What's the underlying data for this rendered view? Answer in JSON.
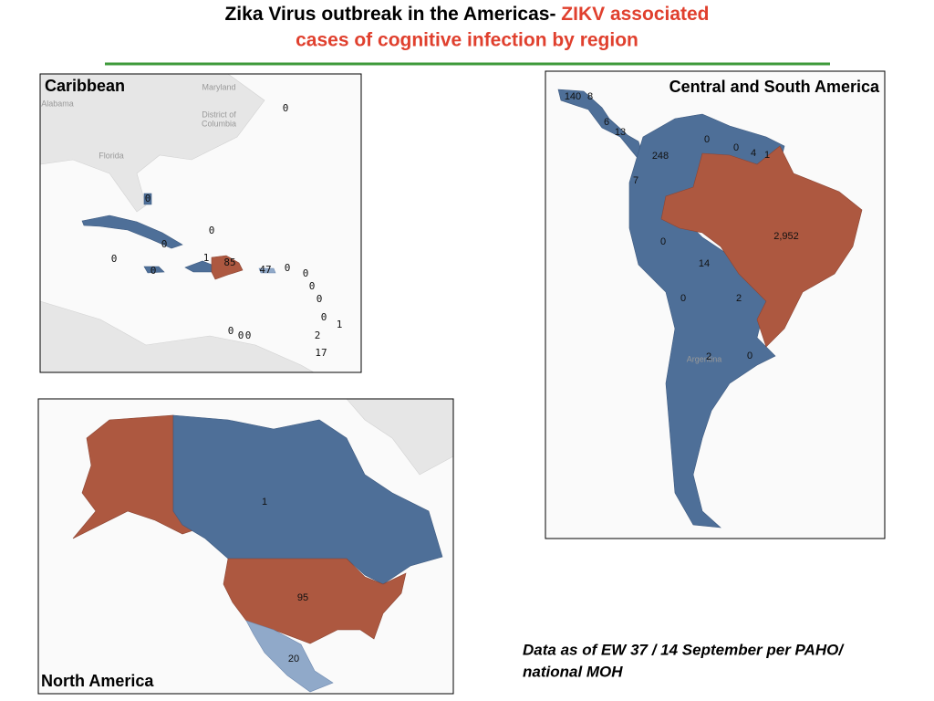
{
  "title": {
    "part1": "Zika Virus outbreak in the Americas- ",
    "part2": "ZIKV associated",
    "line2": "cases of cognitive infection by region"
  },
  "caribbean": {
    "label": "Caribbean",
    "basemap_labels": [
      "Maryland",
      "Alabama",
      "District of",
      "Columbia",
      "Florida"
    ],
    "counts": [
      "0",
      "0",
      "0",
      "0",
      "0",
      "0",
      "1",
      "85",
      "47",
      "0",
      "0",
      "0",
      "0",
      "0",
      "1",
      "0",
      "0",
      "0",
      "2",
      "17"
    ]
  },
  "central_south_america": {
    "label": "Central and South America",
    "basemap_labels": [
      "Argentina"
    ],
    "counts": [
      "140",
      "8",
      "6",
      "13",
      "248",
      "0",
      "0",
      "4",
      "1",
      "7",
      "2,952",
      "0",
      "14",
      "0",
      "2",
      "2",
      "0"
    ]
  },
  "north_america": {
    "label": "North America",
    "counts": [
      "1",
      "95",
      "20"
    ]
  },
  "footnote": [
    "Data as of EW 37 / 14 September per PAHO/",
    "national MOH"
  ]
}
